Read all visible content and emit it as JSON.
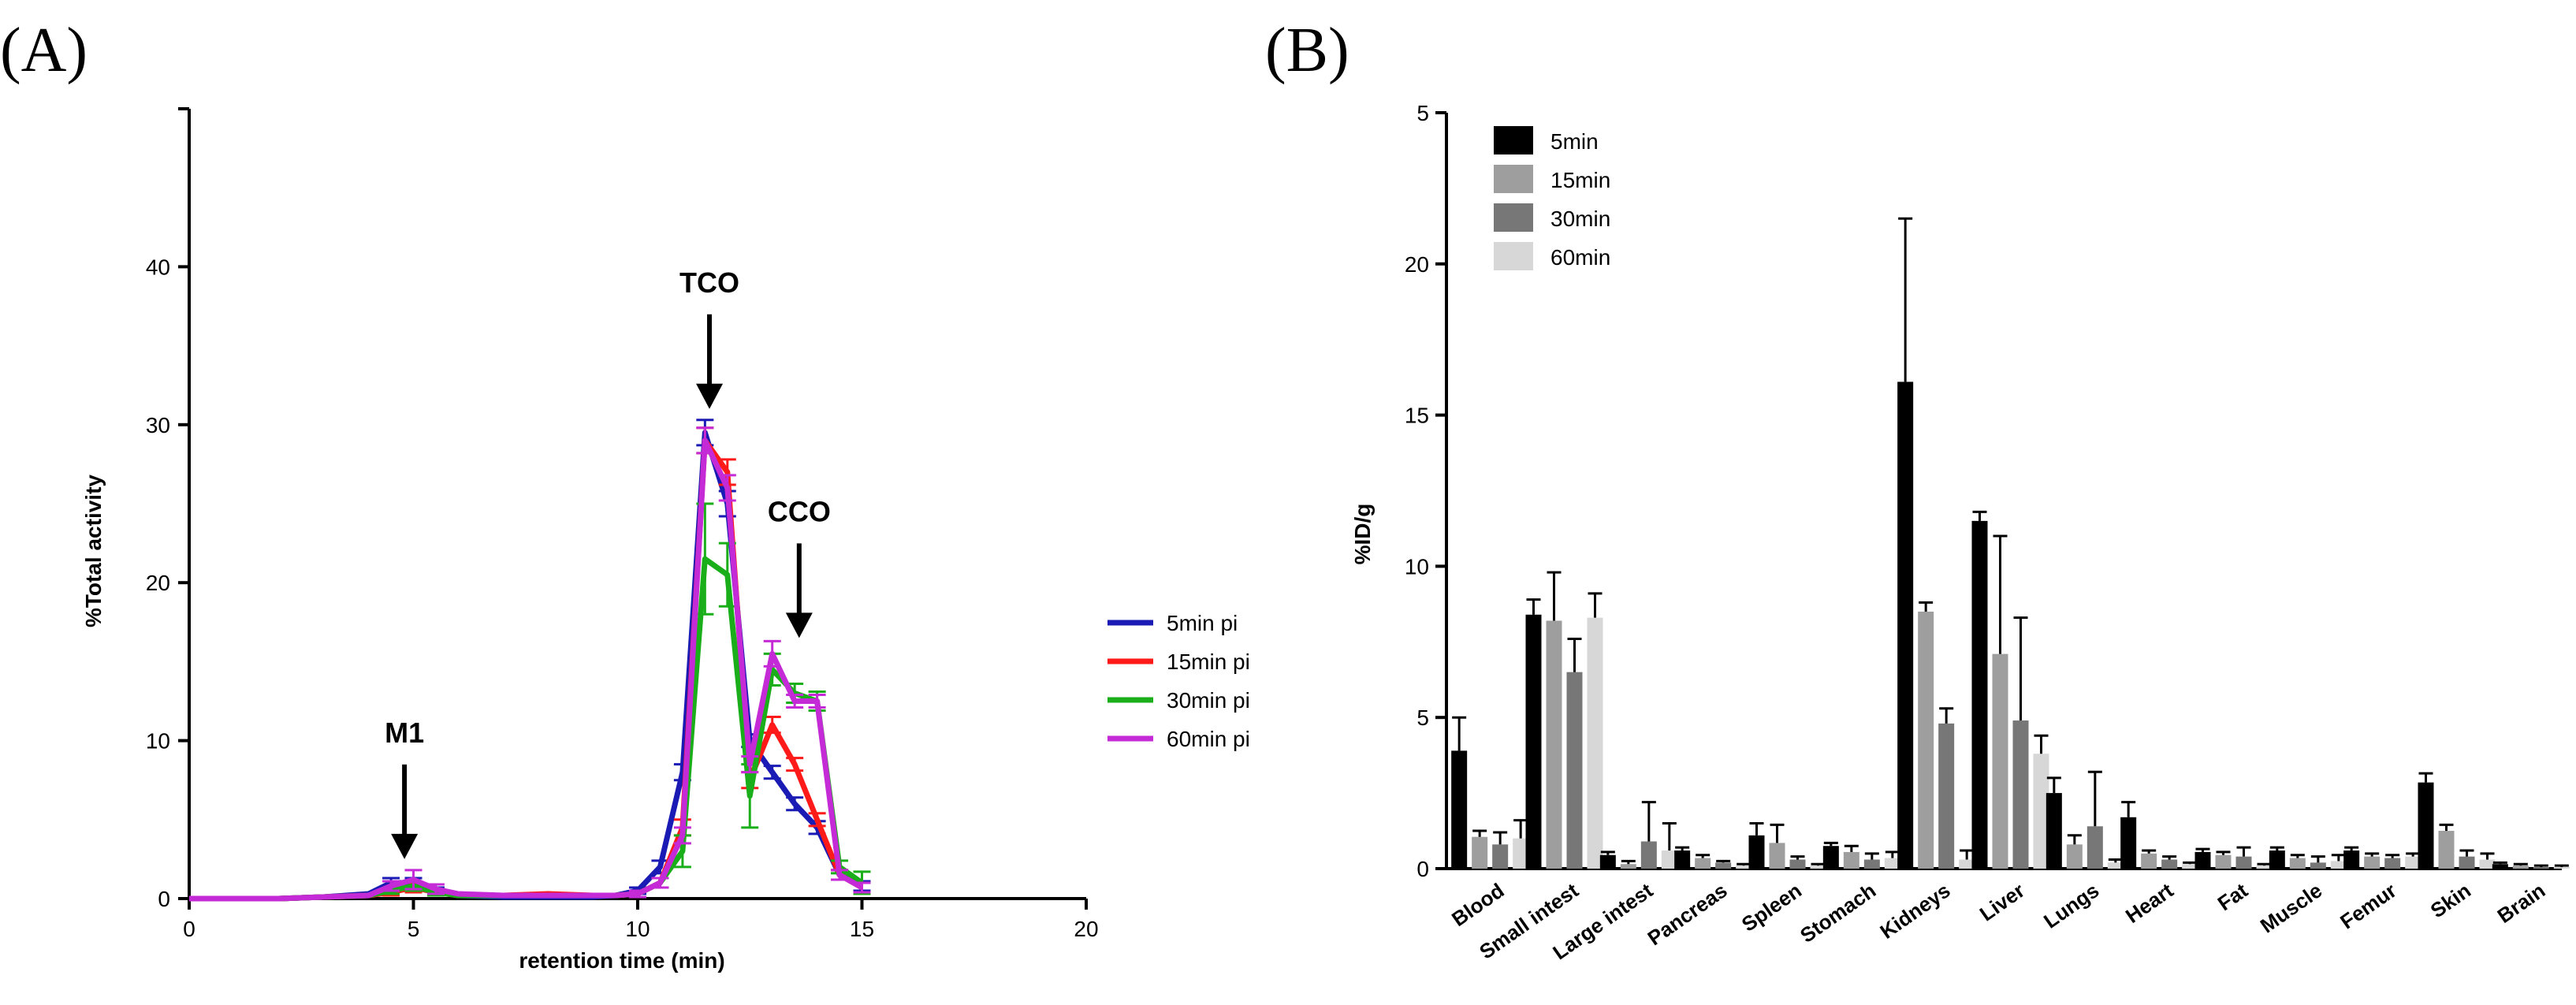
{
  "chart_data": [
    {
      "panel": "(A)",
      "type": "line",
      "title": "",
      "xlabel": "retention time (min)",
      "ylabel": "%Total activity",
      "xlim": [
        0,
        20
      ],
      "ylim": [
        0,
        50
      ],
      "xticks": [
        0,
        5,
        10,
        15,
        20
      ],
      "yticks": [
        0,
        10,
        20,
        30,
        40
      ],
      "legend_position": "right",
      "annotations": [
        {
          "label": "M1",
          "x": 4.8,
          "arrow_to_y": 2.5
        },
        {
          "label": "TCO",
          "x": 11.6,
          "arrow_to_y": 31
        },
        {
          "label": "CCO",
          "x": 13.6,
          "arrow_to_y": 16.5
        }
      ],
      "series": [
        {
          "name": "5min pi",
          "color": "#1a1ab4",
          "x": [
            0,
            2,
            3,
            4,
            4.5,
            5,
            5.5,
            6,
            7,
            8,
            9,
            9.5,
            10,
            10.5,
            11,
            11.5,
            12,
            12.5,
            13,
            13.5,
            14,
            14.5,
            15
          ],
          "y": [
            0,
            0,
            0.1,
            0.3,
            1.0,
            1.0,
            0.5,
            0.2,
            0.1,
            0.1,
            0.1,
            0.2,
            0.5,
            2.0,
            8.0,
            29.5,
            25.0,
            10.0,
            8.0,
            6.0,
            4.5,
            1.5,
            0.8
          ],
          "err": [
            0,
            0,
            0,
            0,
            0.3,
            0.3,
            0.2,
            0,
            0,
            0,
            0,
            0,
            0.2,
            0.4,
            0.5,
            0.8,
            0.8,
            0.4,
            0.4,
            0.4,
            0.4,
            0.3,
            0.3
          ]
        },
        {
          "name": "15min pi",
          "color": "#ff1a1a",
          "x": [
            0,
            2,
            3,
            4,
            4.5,
            5,
            5.5,
            6,
            7,
            8,
            9,
            9.5,
            10,
            10.5,
            11,
            11.5,
            12,
            12.5,
            13,
            13.5,
            14,
            14.5,
            15
          ],
          "y": [
            0,
            0,
            0.1,
            0.2,
            0.4,
            0.7,
            0.4,
            0.2,
            0.2,
            0.3,
            0.2,
            0.2,
            0.3,
            1.0,
            4.5,
            29.0,
            27.0,
            7.5,
            11.0,
            8.5,
            5.0,
            1.5,
            0.7
          ],
          "err": [
            0,
            0,
            0,
            0,
            0.2,
            0.3,
            0.2,
            0,
            0,
            0,
            0,
            0,
            0.2,
            0.3,
            0.5,
            0.8,
            0.8,
            0.5,
            0.5,
            0.4,
            0.4,
            0.3,
            0.3
          ]
        },
        {
          "name": "30min pi",
          "color": "#1aae1a",
          "x": [
            0,
            2,
            3,
            4,
            4.5,
            5,
            5.5,
            6,
            7,
            8,
            9,
            9.5,
            10,
            10.5,
            11,
            11.5,
            12,
            12.5,
            13,
            13.5,
            14,
            14.5,
            15
          ],
          "y": [
            0,
            0,
            0.1,
            0.2,
            0.5,
            0.8,
            0.4,
            0.2,
            0.2,
            0.2,
            0.2,
            0.2,
            0.3,
            1.0,
            3.0,
            21.5,
            20.5,
            6.5,
            14.5,
            13.0,
            12.5,
            2.0,
            1.0
          ],
          "err": [
            0,
            0,
            0,
            0,
            0.2,
            0.3,
            0.2,
            0,
            0,
            0,
            0,
            0,
            0.2,
            0.3,
            1.0,
            3.5,
            2.0,
            2.0,
            1.0,
            0.6,
            0.6,
            0.4,
            0.7
          ]
        },
        {
          "name": "60min pi",
          "color": "#c42ad6",
          "x": [
            0,
            2,
            3,
            4,
            4.5,
            5,
            5.5,
            6,
            7,
            8,
            9,
            9.5,
            10,
            10.5,
            11,
            11.5,
            12,
            12.5,
            13,
            13.5,
            14,
            14.5,
            15
          ],
          "y": [
            0,
            0,
            0.1,
            0.2,
            0.8,
            1.2,
            0.6,
            0.3,
            0.2,
            0.2,
            0.2,
            0.2,
            0.3,
            1.0,
            4.0,
            29.0,
            26.0,
            8.5,
            15.5,
            12.5,
            12.5,
            1.5,
            0.7
          ],
          "err": [
            0,
            0,
            0,
            0,
            0.3,
            0.6,
            0.3,
            0,
            0,
            0,
            0,
            0,
            0.2,
            0.3,
            0.5,
            0.8,
            0.8,
            0.5,
            0.8,
            0.4,
            0.4,
            0.3,
            0.3
          ]
        }
      ]
    },
    {
      "panel": "(B)",
      "type": "bar",
      "title": "",
      "xlabel": "",
      "ylabel": "%ID/g",
      "ylim": [
        0,
        25
      ],
      "yticks": [
        0,
        5,
        10,
        15,
        20
      ],
      "ytick_labels": [
        "0",
        "5",
        "10",
        "15",
        "20"
      ],
      "top_tick_label": "5",
      "legend_position": "top-left",
      "categories": [
        "Blood",
        "Small intest",
        "Large intest",
        "Pancreas",
        "Spleen",
        "Stomach",
        "Kidneys",
        "Liver",
        "Lungs",
        "Heart",
        "Fat",
        "Muscle",
        "Femur",
        "Skin",
        "Brain"
      ],
      "series": [
        {
          "name": "5min",
          "color": "#000000",
          "values": [
            3.9,
            8.4,
            0.45,
            0.6,
            1.1,
            0.75,
            16.1,
            11.5,
            2.5,
            1.7,
            0.55,
            0.6,
            0.6,
            2.85,
            0.15
          ],
          "err": [
            1.1,
            0.5,
            0.1,
            0.1,
            0.4,
            0.1,
            5.4,
            0.3,
            0.5,
            0.5,
            0.1,
            0.1,
            0.1,
            0.3,
            0.05
          ]
        },
        {
          "name": "15min",
          "color": "#9e9e9e",
          "values": [
            1.05,
            8.2,
            0.15,
            0.35,
            0.85,
            0.55,
            8.5,
            7.1,
            0.8,
            0.5,
            0.45,
            0.35,
            0.4,
            1.25,
            0.1
          ],
          "err": [
            0.2,
            1.6,
            0.1,
            0.1,
            0.6,
            0.2,
            0.3,
            3.9,
            0.3,
            0.1,
            0.1,
            0.1,
            0.1,
            0.2,
            0.05
          ]
        },
        {
          "name": "30min",
          "color": "#777777",
          "values": [
            0.8,
            6.5,
            0.9,
            0.2,
            0.3,
            0.3,
            4.8,
            4.9,
            1.4,
            0.3,
            0.4,
            0.2,
            0.35,
            0.4,
            0.05
          ],
          "err": [
            0.4,
            1.1,
            1.3,
            0.05,
            0.1,
            0.2,
            0.5,
            3.4,
            1.8,
            0.1,
            0.3,
            0.2,
            0.1,
            0.2,
            0.05
          ]
        },
        {
          "name": "60min",
          "color": "#d7d7d7",
          "values": [
            1.0,
            8.3,
            0.6,
            0.1,
            0.1,
            0.35,
            0.3,
            3.8,
            0.2,
            0.15,
            0.1,
            0.25,
            0.4,
            0.3,
            0.05
          ],
          "err": [
            0.6,
            0.8,
            0.9,
            0.05,
            0.05,
            0.2,
            0.3,
            0.6,
            0.1,
            0.05,
            0.05,
            0.2,
            0.1,
            0.2,
            0.05
          ]
        }
      ]
    }
  ]
}
